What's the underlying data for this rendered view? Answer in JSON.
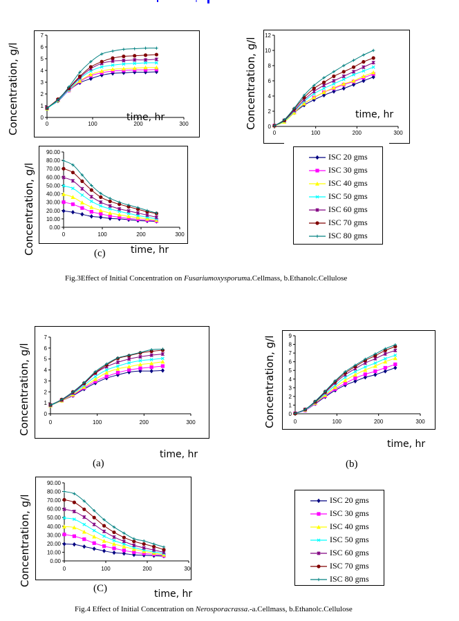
{
  "series_legend": [
    {
      "name": "ISC 20 gms",
      "color": "#000080",
      "marker": "diamond"
    },
    {
      "name": "ISC 30 gms",
      "color": "#ff00ff",
      "marker": "square"
    },
    {
      "name": "ISC 40 gms",
      "color": "#ffff00",
      "marker": "triangle"
    },
    {
      "name": "ISC 50 gms",
      "color": "#00ffff",
      "marker": "x"
    },
    {
      "name": "ISC 60 gms",
      "color": "#800080",
      "marker": "star"
    },
    {
      "name": "ISC 70 gms",
      "color": "#800000",
      "marker": "circle"
    },
    {
      "name": "ISC 80 gms",
      "color": "#008080",
      "marker": "plus"
    }
  ],
  "fig3": {
    "caption_prefix": "Fig.3Effect of Initial Concentration on ",
    "caption_species": "Fusariumoxysporum",
    "caption_suffix": "a.Cellmass, b.Ethanolc.Cellulose",
    "sublabel_c": "(c)"
  },
  "fig4": {
    "caption_prefix": "Fig.4 Effect of Initial Concentration on ",
    "caption_species": "Nerosporacrassa",
    "caption_suffix": ".-a.Cellmass, b.Ethanolc.Cellulose",
    "sublabel_a": "(a)",
    "sublabel_b": "(b)",
    "sublabel_c": "(C)"
  },
  "axis_labels": {
    "y": "Concentration, g/l",
    "x": "time, hr"
  },
  "chart_data": [
    {
      "id": "fig3a",
      "type": "line",
      "title": "",
      "xlabel": "time, hr",
      "ylabel": "Concentration, g/l",
      "xlim": [
        0,
        300
      ],
      "ylim": [
        0,
        7
      ],
      "xticks": [
        "0",
        "100",
        "200",
        "300"
      ],
      "yticks": [
        "0",
        "1",
        "2",
        "3",
        "4",
        "5",
        "6",
        "7"
      ],
      "grid": false,
      "x": [
        0,
        24,
        48,
        72,
        96,
        120,
        144,
        168,
        192,
        216,
        240
      ],
      "series": [
        {
          "name": "ISC 20 gms",
          "values": [
            0.8,
            1.4,
            2.3,
            2.95,
            3.3,
            3.6,
            3.75,
            3.8,
            3.85,
            3.85,
            3.88
          ]
        },
        {
          "name": "ISC 30 gms",
          "values": [
            0.8,
            1.45,
            2.3,
            3.05,
            3.55,
            3.8,
            3.95,
            4.0,
            4.05,
            4.05,
            4.08
          ]
        },
        {
          "name": "ISC 40 gms",
          "values": [
            0.75,
            1.45,
            2.35,
            3.1,
            3.65,
            3.95,
            4.1,
            4.15,
            4.2,
            4.25,
            4.25
          ]
        },
        {
          "name": "ISC 50 gms",
          "values": [
            0.75,
            1.45,
            2.35,
            3.3,
            3.95,
            4.3,
            4.45,
            4.55,
            4.6,
            4.65,
            4.65
          ]
        },
        {
          "name": "ISC 60 gms",
          "values": [
            0.8,
            1.5,
            2.45,
            3.4,
            4.15,
            4.6,
            4.8,
            4.85,
            4.9,
            4.9,
            4.95
          ]
        },
        {
          "name": "ISC 70 gms",
          "values": [
            0.8,
            1.55,
            2.5,
            3.5,
            4.3,
            4.75,
            5.05,
            5.2,
            5.25,
            5.3,
            5.35
          ]
        },
        {
          "name": "ISC 80 gms",
          "values": [
            0.8,
            1.5,
            2.6,
            3.85,
            4.75,
            5.4,
            5.65,
            5.8,
            5.85,
            5.9,
            5.9
          ]
        }
      ]
    },
    {
      "id": "fig3b",
      "type": "line",
      "title": "",
      "xlabel": "time, hr",
      "ylabel": "Concentration, g/l",
      "xlim": [
        0,
        300
      ],
      "ylim": [
        0,
        12
      ],
      "xticks": [
        "0",
        "100",
        "200",
        "300"
      ],
      "yticks": [
        "0",
        "2",
        "4",
        "6",
        "8",
        "10",
        "12"
      ],
      "grid": false,
      "x": [
        0,
        24,
        48,
        72,
        96,
        120,
        144,
        168,
        192,
        216,
        240
      ],
      "series": [
        {
          "name": "ISC 20 gms",
          "values": [
            0.1,
            0.7,
            1.8,
            2.8,
            3.5,
            4.1,
            4.6,
            5.0,
            5.5,
            6.0,
            6.5
          ]
        },
        {
          "name": "ISC 30 gms",
          "values": [
            0.1,
            0.7,
            1.9,
            3.0,
            3.8,
            4.5,
            5.0,
            5.5,
            5.9,
            6.4,
            6.9
          ]
        },
        {
          "name": "ISC 40 gms",
          "values": [
            0.1,
            0.6,
            1.8,
            3.0,
            3.8,
            4.5,
            5.1,
            5.6,
            6.0,
            6.6,
            7.1
          ]
        },
        {
          "name": "ISC 50 gms",
          "values": [
            0.1,
            0.7,
            2.0,
            3.3,
            4.3,
            5.0,
            5.6,
            6.2,
            6.8,
            7.3,
            7.8
          ]
        },
        {
          "name": "ISC 60 gms",
          "values": [
            0.1,
            0.8,
            2.1,
            3.5,
            4.6,
            5.4,
            6.0,
            6.6,
            7.2,
            7.8,
            8.4
          ]
        },
        {
          "name": "ISC 70 gms",
          "values": [
            0.1,
            0.8,
            2.3,
            3.8,
            5.0,
            5.8,
            6.6,
            7.2,
            7.8,
            8.5,
            9.0
          ]
        },
        {
          "name": "ISC 80 gms",
          "values": [
            0.1,
            0.9,
            2.4,
            4.1,
            5.4,
            6.4,
            7.2,
            8.0,
            8.7,
            9.4,
            10.0
          ]
        }
      ]
    },
    {
      "id": "fig3c",
      "type": "line",
      "title": "",
      "xlabel": "time, hr",
      "ylabel": "Concentration, g/l",
      "xlim": [
        0,
        300
      ],
      "ylim": [
        0,
        90
      ],
      "xticks": [
        "0",
        "100",
        "200",
        "300"
      ],
      "yticks": [
        "0.00",
        "10.00",
        "20.00",
        "30.00",
        "40.00",
        "50.00",
        "60.00",
        "70.00",
        "80.00",
        "90.00"
      ],
      "grid": false,
      "x": [
        0,
        24,
        48,
        72,
        96,
        120,
        144,
        168,
        192,
        216,
        240
      ],
      "series": [
        {
          "name": "ISC 20 gms",
          "values": [
            19.5,
            18,
            15.5,
            13,
            12,
            10.5,
            10,
            9,
            8,
            7.5,
            7
          ]
        },
        {
          "name": "ISC 30 gms",
          "values": [
            30,
            27.5,
            23,
            18.5,
            16,
            13.5,
            12,
            10.5,
            9.5,
            8.5,
            7.5
          ]
        },
        {
          "name": "ISC 40 gms",
          "values": [
            39.5,
            36,
            29.5,
            24,
            20,
            17,
            15,
            13,
            11.5,
            10,
            8.5
          ]
        },
        {
          "name": "ISC 50 gms",
          "values": [
            49.5,
            46.5,
            38.5,
            31,
            25.5,
            22,
            19,
            16.5,
            14,
            12,
            10
          ]
        },
        {
          "name": "ISC 60 gms",
          "values": [
            59.5,
            55.5,
            46,
            36.5,
            30,
            25.5,
            22,
            19.5,
            17,
            14.5,
            12
          ]
        },
        {
          "name": "ISC 70 gms",
          "values": [
            70,
            65.5,
            55,
            44.5,
            36,
            31,
            27.5,
            24.5,
            21.5,
            18.5,
            16.5
          ]
        },
        {
          "name": "ISC 80 gms",
          "values": [
            79.5,
            74.5,
            62.5,
            50,
            40.5,
            34.5,
            30,
            26.5,
            23.5,
            20,
            17
          ]
        }
      ]
    },
    {
      "id": "fig4a",
      "type": "line",
      "title": "",
      "xlabel": "time, hr",
      "ylabel": "Concentration, g/l",
      "xlim": [
        0,
        300
      ],
      "ylim": [
        0,
        7
      ],
      "xticks": [
        "0",
        "100",
        "200",
        "300"
      ],
      "yticks": [
        "0",
        "1",
        "2",
        "3",
        "4",
        "5",
        "6",
        "7"
      ],
      "grid": false,
      "x": [
        0,
        24,
        48,
        72,
        96,
        120,
        144,
        168,
        192,
        216,
        240
      ],
      "series": [
        {
          "name": "ISC 20 gms",
          "values": [
            0.75,
            1.2,
            1.65,
            2.25,
            2.8,
            3.25,
            3.55,
            3.8,
            3.9,
            3.9,
            3.95
          ]
        },
        {
          "name": "ISC 30 gms",
          "values": [
            0.75,
            1.2,
            1.7,
            2.35,
            2.95,
            3.4,
            3.75,
            4.0,
            4.15,
            4.25,
            4.35
          ]
        },
        {
          "name": "ISC 40 gms",
          "values": [
            0.75,
            1.2,
            1.75,
            2.45,
            3.15,
            3.75,
            4.1,
            4.3,
            4.5,
            4.6,
            4.75
          ]
        },
        {
          "name": "ISC 50 gms",
          "values": [
            0.75,
            1.25,
            1.85,
            2.6,
            3.4,
            4.0,
            4.35,
            4.65,
            4.85,
            4.95,
            5.05
          ]
        },
        {
          "name": "ISC 60 gms",
          "values": [
            0.8,
            1.25,
            1.9,
            2.75,
            3.7,
            4.3,
            4.7,
            5.0,
            5.2,
            5.35,
            5.45
          ]
        },
        {
          "name": "ISC 70 gms",
          "values": [
            0.8,
            1.3,
            2.0,
            2.8,
            3.75,
            4.45,
            5.05,
            5.3,
            5.55,
            5.7,
            5.8
          ]
        },
        {
          "name": "ISC 80 gms",
          "values": [
            0.8,
            1.3,
            2.0,
            2.85,
            3.85,
            4.55,
            5.1,
            5.35,
            5.6,
            5.85,
            5.9
          ]
        }
      ]
    },
    {
      "id": "fig4b",
      "type": "line",
      "title": "",
      "xlabel": "time, hr",
      "ylabel": "Concentration, g/l",
      "xlim": [
        0,
        300
      ],
      "ylim": [
        0,
        9
      ],
      "xticks": [
        "0",
        "100",
        "200",
        "300"
      ],
      "yticks": [
        "0",
        "1",
        "2",
        "3",
        "4",
        "5",
        "6",
        "7",
        "8",
        "9"
      ],
      "grid": false,
      "x": [
        0,
        24,
        48,
        72,
        96,
        120,
        144,
        168,
        192,
        216,
        240
      ],
      "series": [
        {
          "name": "ISC 20 gms",
          "values": [
            0.05,
            0.4,
            1.15,
            1.95,
            2.7,
            3.3,
            3.75,
            4.2,
            4.5,
            4.9,
            5.3
          ]
        },
        {
          "name": "ISC 30 gms",
          "values": [
            0.05,
            0.4,
            1.2,
            2.05,
            2.85,
            3.5,
            4.1,
            4.55,
            4.9,
            5.3,
            5.7
          ]
        },
        {
          "name": "ISC 40 gms",
          "values": [
            0.05,
            0.45,
            1.25,
            2.15,
            3.05,
            3.85,
            4.5,
            5.05,
            5.5,
            6.0,
            6.4
          ]
        },
        {
          "name": "ISC 50 gms",
          "values": [
            0.05,
            0.45,
            1.3,
            2.3,
            3.3,
            4.2,
            4.85,
            5.4,
            5.85,
            6.35,
            6.75
          ]
        },
        {
          "name": "ISC 60 gms",
          "values": [
            0.05,
            0.5,
            1.35,
            2.45,
            3.55,
            4.5,
            5.2,
            5.85,
            6.35,
            6.9,
            7.3
          ]
        },
        {
          "name": "ISC 70 gms",
          "values": [
            0.05,
            0.5,
            1.4,
            2.55,
            3.7,
            4.7,
            5.45,
            6.15,
            6.7,
            7.3,
            7.75
          ]
        },
        {
          "name": "ISC 80 gms",
          "values": [
            0.05,
            0.5,
            1.45,
            2.6,
            3.8,
            4.85,
            5.6,
            6.3,
            6.9,
            7.5,
            7.95
          ]
        }
      ]
    },
    {
      "id": "fig4c",
      "type": "line",
      "title": "",
      "xlabel": "time, hr",
      "ylabel": "Concentration, g/l",
      "xlim": [
        0,
        300
      ],
      "ylim": [
        0,
        90
      ],
      "xticks": [
        "0",
        "100",
        "200",
        "300"
      ],
      "yticks": [
        "0.00",
        "10.00",
        "20.00",
        "30.00",
        "40.00",
        "50.00",
        "60.00",
        "70.00",
        "80.00",
        "90.00"
      ],
      "grid": false,
      "x": [
        0,
        24,
        48,
        72,
        96,
        120,
        144,
        168,
        192,
        216,
        240
      ],
      "series": [
        {
          "name": "ISC 20 gms",
          "values": [
            19.5,
            19,
            16.5,
            14,
            11.5,
            9.5,
            8.5,
            7,
            6.5,
            6,
            5.5
          ]
        },
        {
          "name": "ISC 30 gms",
          "values": [
            30.5,
            28.5,
            25,
            20.5,
            17,
            14.5,
            12,
            10,
            8.5,
            7.5,
            6
          ]
        },
        {
          "name": "ISC 40 gms",
          "values": [
            39.5,
            38.5,
            33.5,
            28,
            23,
            19.5,
            16.5,
            13.5,
            11,
            9,
            7
          ]
        },
        {
          "name": "ISC 50 gms",
          "values": [
            49.5,
            48,
            42,
            35,
            28.5,
            23.5,
            19.5,
            15.5,
            12.5,
            10.5,
            8.5
          ]
        },
        {
          "name": "ISC 60 gms",
          "values": [
            59.5,
            57,
            50.5,
            42,
            34,
            27.5,
            22.5,
            18,
            15,
            12.5,
            10
          ]
        },
        {
          "name": "ISC 70 gms",
          "values": [
            70.5,
            67.5,
            59.5,
            50,
            40.5,
            33,
            27,
            22.5,
            19.5,
            16.5,
            13
          ]
        },
        {
          "name": "ISC 80 gms",
          "values": [
            80,
            77.5,
            69,
            58,
            47.5,
            39,
            32,
            25.5,
            23,
            19.5,
            16
          ]
        }
      ]
    }
  ]
}
